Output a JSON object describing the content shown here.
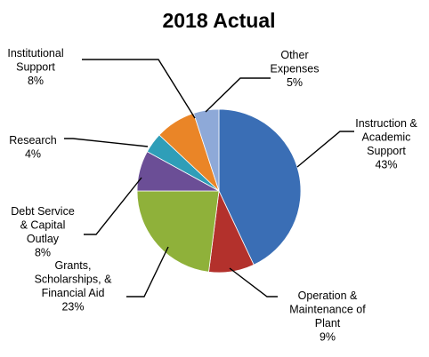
{
  "chart_data": {
    "type": "pie",
    "title": "2018 Actual",
    "slices": [
      {
        "label": [
          "Instruction &",
          "Academic",
          "Support"
        ],
        "value": 43,
        "display": "43%",
        "color": "#3a6eb5"
      },
      {
        "label": [
          "Operation &",
          "Maintenance of",
          "Plant"
        ],
        "value": 9,
        "display": "9%",
        "color": "#b3312c"
      },
      {
        "label": [
          "Grants,",
          "Scholarships, &",
          "Financial Aid"
        ],
        "value": 23,
        "display": "23%",
        "color": "#8fb13a"
      },
      {
        "label": [
          "Debt Service",
          "& Capital",
          "Outlay"
        ],
        "value": 8,
        "display": "8%",
        "color": "#6b4e96"
      },
      {
        "label": [
          "Research"
        ],
        "value": 4,
        "display": "4%",
        "color": "#2f9eb8"
      },
      {
        "label": [
          "Institutional",
          "Support"
        ],
        "value": 8,
        "display": "8%",
        "color": "#ea8527"
      },
      {
        "label": [
          "Other",
          "Expenses"
        ],
        "value": 5,
        "display": "5%",
        "color": "#8ea9d8"
      }
    ]
  }
}
